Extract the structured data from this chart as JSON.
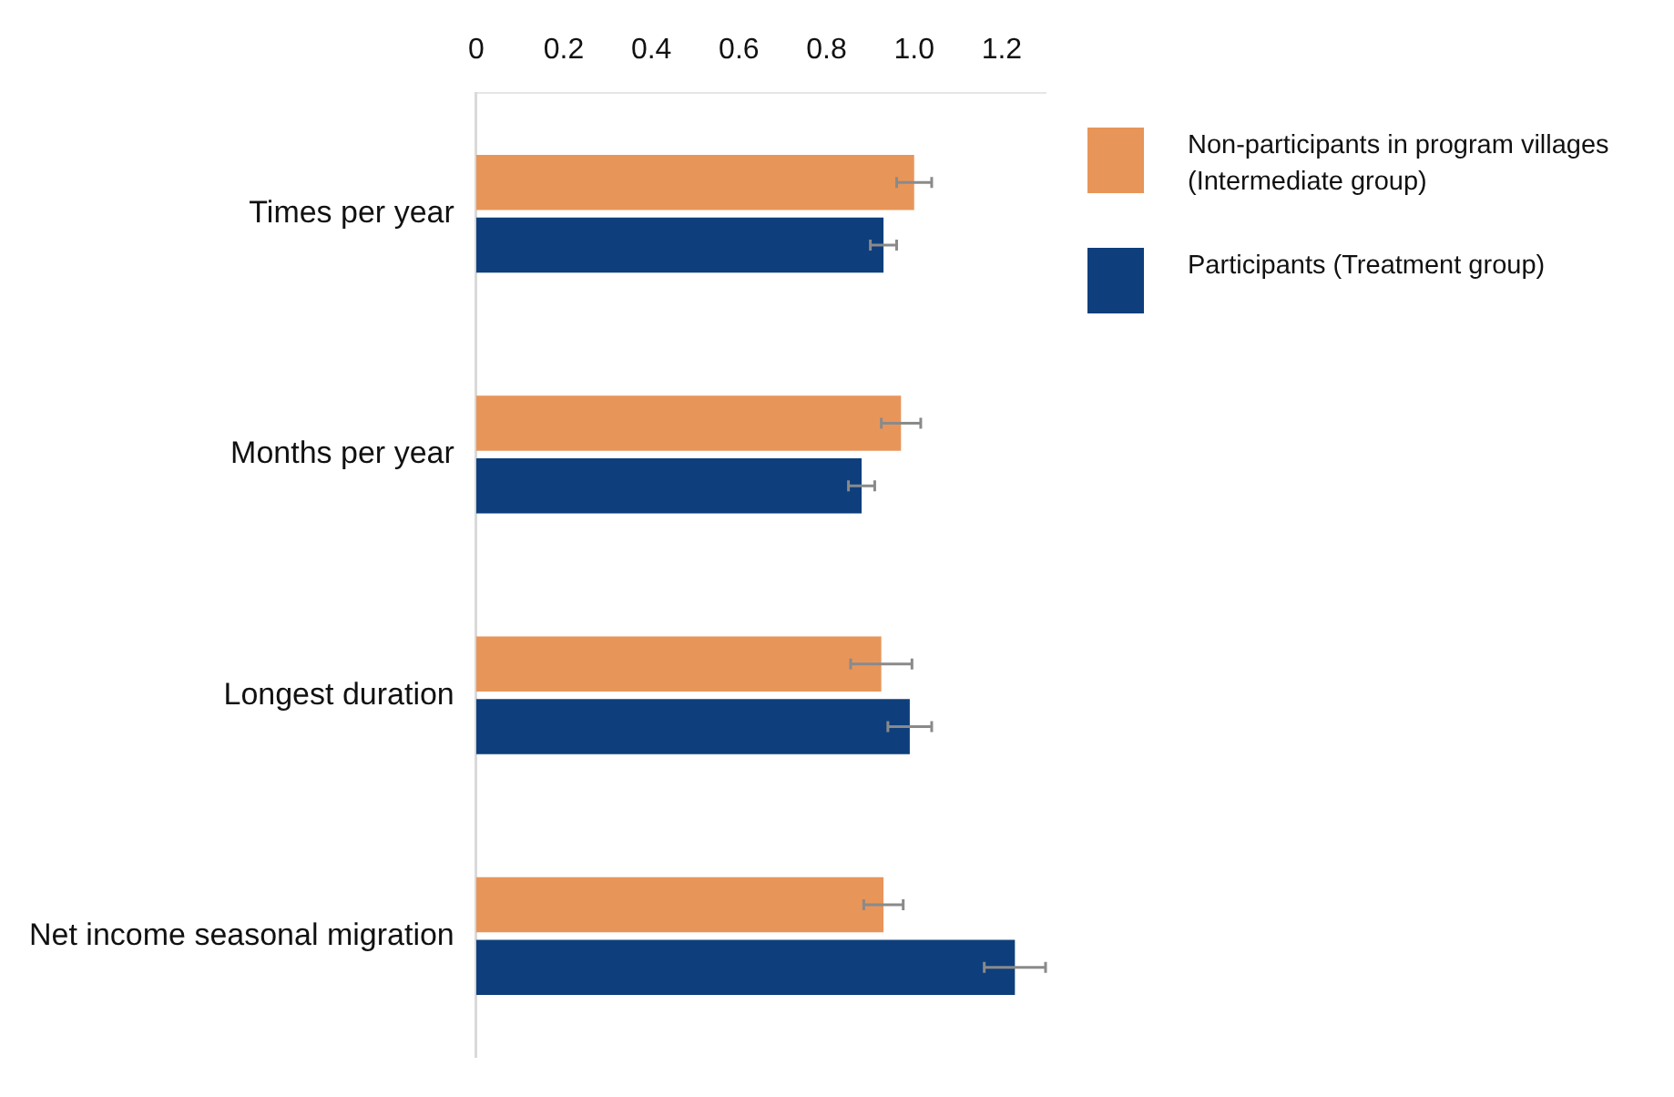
{
  "chart_data": {
    "type": "bar",
    "orientation": "horizontal",
    "categories": [
      "Times per year",
      "Months per year",
      "Longest duration",
      "Net income seasonal migration"
    ],
    "series": [
      {
        "name": "Non-participants in program villages (Intermediate group)",
        "color": "#e8955a",
        "values": [
          1.0,
          0.97,
          0.925,
          0.93
        ],
        "errors": [
          0.04,
          0.045,
          0.07,
          0.045
        ]
      },
      {
        "name": "Participants (Treatment group)",
        "color": "#0e3f7c",
        "values": [
          0.93,
          0.88,
          0.99,
          1.23
        ],
        "errors": [
          0.03,
          0.03,
          0.05,
          0.07
        ]
      }
    ],
    "xlim": [
      0,
      1.3
    ],
    "xticks": [
      0,
      0.2,
      0.4,
      0.6,
      0.8,
      {
        "value": 1,
        "label": "1.0"
      },
      1.2
    ],
    "grid": false,
    "legend": "top right"
  }
}
